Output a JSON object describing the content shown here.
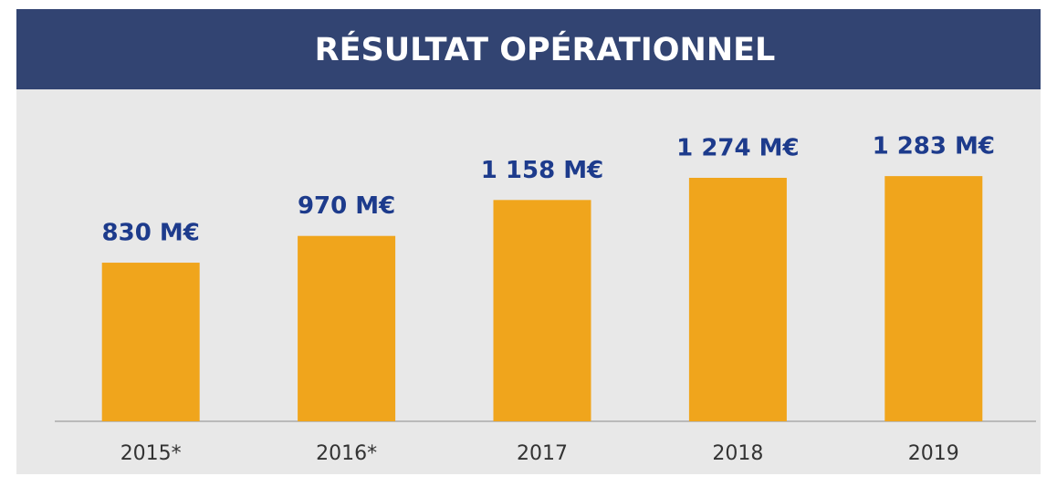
{
  "chart_data": {
    "type": "bar",
    "title": "RÉSULTAT OPÉRATIONNEL",
    "categories": [
      "2015*",
      "2016*",
      "2017",
      "2018",
      "2019"
    ],
    "values": [
      830,
      970,
      1158,
      1274,
      1283
    ],
    "value_labels": [
      "830 M€",
      "970 M€",
      "1 158 M€",
      "1 274 M€",
      "1 283 M€"
    ],
    "color": "#f0a51c",
    "ylim": [
      0,
      1400
    ]
  }
}
